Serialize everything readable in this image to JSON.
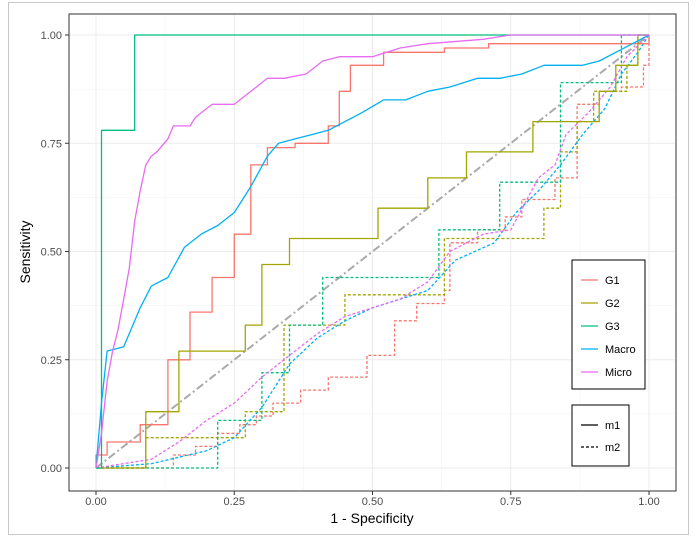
{
  "chart_data": {
    "type": "line",
    "title": "",
    "xlabel": "1 - Specificity",
    "ylabel": "Sensitivity",
    "xlim": [
      0,
      1
    ],
    "ylim": [
      0,
      1
    ],
    "x_ticks": [
      0,
      0.25,
      0.5,
      0.75,
      1
    ],
    "x_tick_labels": [
      "0.00",
      "0.25",
      "0.50",
      "0.75",
      "1.00"
    ],
    "y_ticks": [
      0,
      0.25,
      0.5,
      0.75,
      1
    ],
    "y_tick_labels": [
      "0.00",
      "0.25",
      "0.50",
      "0.75",
      "1.00"
    ],
    "grid": true,
    "colors": {
      "G1": "#F8766D",
      "G2": "#A3A500",
      "G3": "#00BF7D",
      "Macro": "#00B0F6",
      "Micro": "#E76BF3",
      "diagonal": "#aaaaaa"
    },
    "legend_color": {
      "position": "right",
      "entries": [
        "G1",
        "G2",
        "G3",
        "Macro",
        "Micro"
      ]
    },
    "legend_linetype": {
      "position": "bottom-right",
      "entries": [
        {
          "label": "m1",
          "dash": "solid"
        },
        {
          "label": "m2",
          "dash": "dashed"
        }
      ]
    },
    "series": [
      {
        "name": "G1",
        "model": "m1",
        "points": [
          [
            0,
            0
          ],
          [
            0,
            0.03
          ],
          [
            0.02,
            0.03
          ],
          [
            0.02,
            0.06
          ],
          [
            0.08,
            0.06
          ],
          [
            0.08,
            0.1
          ],
          [
            0.13,
            0.1
          ],
          [
            0.13,
            0.25
          ],
          [
            0.17,
            0.25
          ],
          [
            0.17,
            0.36
          ],
          [
            0.21,
            0.36
          ],
          [
            0.21,
            0.44
          ],
          [
            0.25,
            0.44
          ],
          [
            0.25,
            0.54
          ],
          [
            0.28,
            0.54
          ],
          [
            0.28,
            0.7
          ],
          [
            0.31,
            0.7
          ],
          [
            0.31,
            0.74
          ],
          [
            0.36,
            0.74
          ],
          [
            0.36,
            0.75
          ],
          [
            0.42,
            0.75
          ],
          [
            0.42,
            0.79
          ],
          [
            0.44,
            0.79
          ],
          [
            0.44,
            0.87
          ],
          [
            0.46,
            0.87
          ],
          [
            0.46,
            0.93
          ],
          [
            0.52,
            0.93
          ],
          [
            0.52,
            0.96
          ],
          [
            0.63,
            0.96
          ],
          [
            0.63,
            0.97
          ],
          [
            0.71,
            0.97
          ],
          [
            0.71,
            0.98
          ],
          [
            1,
            0.98
          ],
          [
            1,
            1
          ]
        ]
      },
      {
        "name": "G2",
        "model": "m1",
        "points": [
          [
            0,
            0
          ],
          [
            0.09,
            0
          ],
          [
            0.09,
            0.13
          ],
          [
            0.15,
            0.13
          ],
          [
            0.15,
            0.27
          ],
          [
            0.27,
            0.27
          ],
          [
            0.27,
            0.33
          ],
          [
            0.3,
            0.33
          ],
          [
            0.3,
            0.47
          ],
          [
            0.35,
            0.47
          ],
          [
            0.35,
            0.53
          ],
          [
            0.51,
            0.53
          ],
          [
            0.51,
            0.6
          ],
          [
            0.6,
            0.6
          ],
          [
            0.6,
            0.67
          ],
          [
            0.67,
            0.67
          ],
          [
            0.67,
            0.73
          ],
          [
            0.79,
            0.73
          ],
          [
            0.79,
            0.8
          ],
          [
            0.91,
            0.8
          ],
          [
            0.91,
            0.87
          ],
          [
            0.94,
            0.87
          ],
          [
            0.94,
            0.93
          ],
          [
            0.98,
            0.93
          ],
          [
            0.98,
            1
          ],
          [
            1,
            1
          ]
        ]
      },
      {
        "name": "G3",
        "model": "m1",
        "points": [
          [
            0,
            0
          ],
          [
            0.01,
            0
          ],
          [
            0.01,
            0.78
          ],
          [
            0.07,
            0.78
          ],
          [
            0.07,
            1
          ],
          [
            1,
            1
          ]
        ]
      },
      {
        "name": "Macro",
        "model": "m1",
        "points": [
          [
            0,
            0
          ],
          [
            0.01,
            0.15
          ],
          [
            0.02,
            0.27
          ],
          [
            0.05,
            0.28
          ],
          [
            0.07,
            0.34
          ],
          [
            0.08,
            0.37
          ],
          [
            0.1,
            0.42
          ],
          [
            0.13,
            0.44
          ],
          [
            0.16,
            0.51
          ],
          [
            0.19,
            0.54
          ],
          [
            0.22,
            0.56
          ],
          [
            0.25,
            0.59
          ],
          [
            0.28,
            0.65
          ],
          [
            0.31,
            0.72
          ],
          [
            0.33,
            0.75
          ],
          [
            0.36,
            0.76
          ],
          [
            0.39,
            0.77
          ],
          [
            0.42,
            0.78
          ],
          [
            0.45,
            0.8
          ],
          [
            0.48,
            0.82
          ],
          [
            0.52,
            0.85
          ],
          [
            0.56,
            0.85
          ],
          [
            0.6,
            0.87
          ],
          [
            0.64,
            0.88
          ],
          [
            0.69,
            0.9
          ],
          [
            0.73,
            0.9
          ],
          [
            0.77,
            0.91
          ],
          [
            0.81,
            0.93
          ],
          [
            0.85,
            0.93
          ],
          [
            0.88,
            0.93
          ],
          [
            0.91,
            0.94
          ],
          [
            0.94,
            0.96
          ],
          [
            0.97,
            0.98
          ],
          [
            1,
            1
          ]
        ]
      },
      {
        "name": "Micro",
        "model": "m1",
        "points": [
          [
            0,
            0
          ],
          [
            0.01,
            0.08
          ],
          [
            0.02,
            0.2
          ],
          [
            0.03,
            0.27
          ],
          [
            0.04,
            0.32
          ],
          [
            0.05,
            0.39
          ],
          [
            0.06,
            0.46
          ],
          [
            0.07,
            0.57
          ],
          [
            0.08,
            0.64
          ],
          [
            0.09,
            0.7
          ],
          [
            0.1,
            0.72
          ],
          [
            0.11,
            0.73
          ],
          [
            0.13,
            0.76
          ],
          [
            0.14,
            0.79
          ],
          [
            0.17,
            0.79
          ],
          [
            0.18,
            0.81
          ],
          [
            0.21,
            0.84
          ],
          [
            0.25,
            0.84
          ],
          [
            0.27,
            0.86
          ],
          [
            0.29,
            0.88
          ],
          [
            0.31,
            0.9
          ],
          [
            0.34,
            0.9
          ],
          [
            0.38,
            0.91
          ],
          [
            0.41,
            0.94
          ],
          [
            0.44,
            0.95
          ],
          [
            0.5,
            0.95
          ],
          [
            0.55,
            0.97
          ],
          [
            0.6,
            0.98
          ],
          [
            0.7,
            0.99
          ],
          [
            0.75,
            1
          ],
          [
            1,
            1
          ]
        ]
      },
      {
        "name": "G1",
        "model": "m2",
        "points": [
          [
            0,
            0
          ],
          [
            0.14,
            0
          ],
          [
            0.14,
            0.03
          ],
          [
            0.18,
            0.03
          ],
          [
            0.18,
            0.05
          ],
          [
            0.22,
            0.05
          ],
          [
            0.22,
            0.08
          ],
          [
            0.26,
            0.08
          ],
          [
            0.26,
            0.1
          ],
          [
            0.29,
            0.1
          ],
          [
            0.29,
            0.12
          ],
          [
            0.32,
            0.12
          ],
          [
            0.32,
            0.15
          ],
          [
            0.37,
            0.15
          ],
          [
            0.37,
            0.18
          ],
          [
            0.42,
            0.18
          ],
          [
            0.42,
            0.21
          ],
          [
            0.49,
            0.21
          ],
          [
            0.49,
            0.26
          ],
          [
            0.54,
            0.26
          ],
          [
            0.54,
            0.34
          ],
          [
            0.58,
            0.34
          ],
          [
            0.58,
            0.38
          ],
          [
            0.63,
            0.38
          ],
          [
            0.63,
            0.41
          ],
          [
            0.64,
            0.41
          ],
          [
            0.64,
            0.52
          ],
          [
            0.69,
            0.52
          ],
          [
            0.69,
            0.55
          ],
          [
            0.74,
            0.55
          ],
          [
            0.74,
            0.58
          ],
          [
            0.77,
            0.58
          ],
          [
            0.77,
            0.62
          ],
          [
            0.83,
            0.62
          ],
          [
            0.83,
            0.67
          ],
          [
            0.87,
            0.67
          ],
          [
            0.87,
            0.84
          ],
          [
            0.91,
            0.84
          ],
          [
            0.91,
            0.87
          ],
          [
            0.95,
            0.87
          ],
          [
            0.95,
            0.88
          ],
          [
            0.99,
            0.88
          ],
          [
            0.99,
            0.93
          ],
          [
            1,
            0.93
          ],
          [
            1,
            1
          ]
        ]
      },
      {
        "name": "G2",
        "model": "m2",
        "points": [
          [
            0,
            0
          ],
          [
            0.09,
            0
          ],
          [
            0.09,
            0.07
          ],
          [
            0.27,
            0.07
          ],
          [
            0.27,
            0.13
          ],
          [
            0.34,
            0.13
          ],
          [
            0.34,
            0.33
          ],
          [
            0.45,
            0.33
          ],
          [
            0.45,
            0.4
          ],
          [
            0.63,
            0.4
          ],
          [
            0.63,
            0.53
          ],
          [
            0.81,
            0.53
          ],
          [
            0.81,
            0.6
          ],
          [
            0.84,
            0.6
          ],
          [
            0.84,
            0.73
          ],
          [
            0.87,
            0.73
          ],
          [
            0.87,
            0.8
          ],
          [
            0.9,
            0.8
          ],
          [
            0.9,
            0.87
          ],
          [
            0.96,
            0.87
          ],
          [
            0.96,
            0.93
          ],
          [
            0.98,
            0.93
          ],
          [
            0.98,
            1
          ],
          [
            1,
            1
          ]
        ]
      },
      {
        "name": "G3",
        "model": "m2",
        "points": [
          [
            0,
            0
          ],
          [
            0.22,
            0
          ],
          [
            0.22,
            0.11
          ],
          [
            0.3,
            0.11
          ],
          [
            0.3,
            0.22
          ],
          [
            0.35,
            0.22
          ],
          [
            0.35,
            0.33
          ],
          [
            0.41,
            0.33
          ],
          [
            0.41,
            0.44
          ],
          [
            0.62,
            0.44
          ],
          [
            0.62,
            0.55
          ],
          [
            0.73,
            0.55
          ],
          [
            0.73,
            0.66
          ],
          [
            0.84,
            0.66
          ],
          [
            0.84,
            0.89
          ],
          [
            0.95,
            0.89
          ],
          [
            0.95,
            1
          ],
          [
            1,
            1
          ]
        ]
      },
      {
        "name": "Macro",
        "model": "m2",
        "points": [
          [
            0,
            0
          ],
          [
            0.1,
            0.01
          ],
          [
            0.2,
            0.04
          ],
          [
            0.25,
            0.07
          ],
          [
            0.3,
            0.14
          ],
          [
            0.35,
            0.24
          ],
          [
            0.4,
            0.3
          ],
          [
            0.45,
            0.34
          ],
          [
            0.5,
            0.37
          ],
          [
            0.55,
            0.39
          ],
          [
            0.6,
            0.41
          ],
          [
            0.65,
            0.48
          ],
          [
            0.72,
            0.52
          ],
          [
            0.76,
            0.59
          ],
          [
            0.8,
            0.64
          ],
          [
            0.84,
            0.7
          ],
          [
            0.88,
            0.77
          ],
          [
            0.92,
            0.83
          ],
          [
            0.95,
            0.91
          ],
          [
            0.98,
            0.96
          ],
          [
            1,
            1
          ]
        ]
      },
      {
        "name": "Micro",
        "model": "m2",
        "points": [
          [
            0,
            0
          ],
          [
            0.1,
            0.02
          ],
          [
            0.15,
            0.06
          ],
          [
            0.2,
            0.11
          ],
          [
            0.25,
            0.15
          ],
          [
            0.3,
            0.21
          ],
          [
            0.35,
            0.26
          ],
          [
            0.4,
            0.31
          ],
          [
            0.45,
            0.35
          ],
          [
            0.5,
            0.37
          ],
          [
            0.55,
            0.39
          ],
          [
            0.6,
            0.43
          ],
          [
            0.64,
            0.5
          ],
          [
            0.7,
            0.54
          ],
          [
            0.75,
            0.55
          ],
          [
            0.8,
            0.67
          ],
          [
            0.83,
            0.7
          ],
          [
            0.85,
            0.77
          ],
          [
            0.89,
            0.82
          ],
          [
            0.93,
            0.88
          ],
          [
            0.96,
            0.95
          ],
          [
            1,
            1
          ]
        ]
      }
    ]
  }
}
